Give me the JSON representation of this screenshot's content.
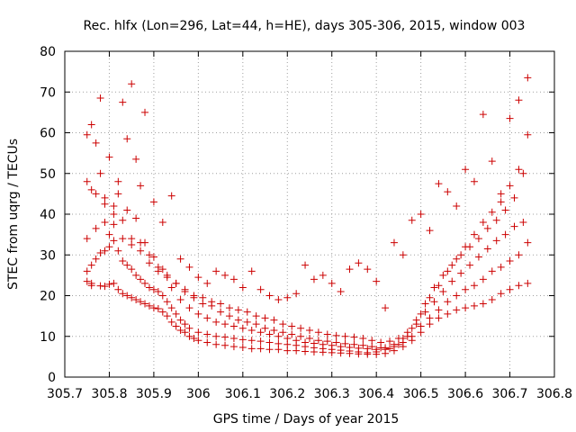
{
  "chart_data": {
    "type": "scatter",
    "title": "Rec. hlfx (Lon=296, Lat=44, h=HE), days 305-306, 2015, window 003",
    "xlabel": "GPS time / Days of year 2015",
    "ylabel": "STEC from uqrg / TECUs",
    "xlim": [
      305.7,
      306.8
    ],
    "ylim": [
      0,
      80
    ],
    "xticks": [
      "305.7",
      "305.8",
      "305.9",
      "306",
      "306.1",
      "306.2",
      "306.3",
      "306.4",
      "306.5",
      "306.6",
      "306.7",
      "306.8"
    ],
    "yticks": [
      "0",
      "10",
      "20",
      "30",
      "40",
      "50",
      "60",
      "70",
      "80"
    ],
    "grid": true,
    "marker": "plus",
    "marker_color": "#cc0000",
    "series": [
      {
        "x": [
          305.75,
          305.76,
          305.76,
          305.78,
          305.79,
          305.8,
          305.81,
          305.82,
          305.83,
          305.84,
          305.85,
          305.86,
          305.87,
          305.88,
          305.89,
          305.9,
          305.91,
          305.92,
          305.93,
          305.94,
          305.95,
          305.96,
          305.97,
          305.98,
          305.99,
          306.0,
          306.02,
          306.04,
          306.06,
          306.08,
          306.1,
          306.12,
          306.14,
          306.16,
          306.18,
          306.2,
          306.22,
          306.24,
          306.26,
          306.28,
          306.3,
          306.32,
          306.34,
          306.36,
          306.38,
          306.4,
          306.42,
          306.44,
          306.46,
          306.48,
          306.5,
          306.52,
          306.54,
          306.56,
          306.58,
          306.6,
          306.62,
          306.64,
          306.66,
          306.68,
          306.7,
          306.72,
          306.74
        ],
        "y": [
          23.5,
          23.0,
          22.5,
          22.4,
          22.3,
          22.8,
          23.0,
          21.5,
          20.5,
          20.0,
          19.5,
          19.0,
          18.5,
          18.0,
          17.5,
          17.0,
          16.8,
          16.0,
          15.0,
          13.5,
          12.5,
          11.5,
          11.0,
          10.0,
          9.5,
          9.0,
          8.5,
          8.0,
          7.8,
          7.5,
          7.3,
          7.0,
          7.0,
          6.8,
          6.8,
          6.5,
          6.5,
          6.3,
          6.2,
          6.1,
          6.0,
          5.9,
          5.8,
          5.7,
          5.6,
          5.6,
          5.8,
          6.5,
          7.5,
          9.0,
          11.0,
          13.0,
          14.5,
          15.5,
          16.5,
          17.0,
          17.5,
          18.0,
          19.0,
          20.5,
          21.5,
          22.5,
          23.0
        ]
      },
      {
        "x": [
          305.75,
          305.76,
          305.77,
          305.78,
          305.79,
          305.8,
          305.81,
          305.82,
          305.83,
          305.84,
          305.85,
          305.86,
          305.87,
          305.88,
          305.89,
          305.9,
          305.91,
          305.92,
          305.93,
          305.94,
          305.95,
          305.96,
          305.97,
          305.98,
          306.0,
          306.02,
          306.04,
          306.06,
          306.08,
          306.1,
          306.12,
          306.14,
          306.16,
          306.18,
          306.2,
          306.22,
          306.24,
          306.26,
          306.28,
          306.3,
          306.32,
          306.34,
          306.36,
          306.38,
          306.4,
          306.42,
          306.44,
          306.46,
          306.48,
          306.5,
          306.52,
          306.54,
          306.56,
          306.58,
          306.6,
          306.62,
          306.64,
          306.66,
          306.68,
          306.7,
          306.72,
          306.74
        ],
        "y": [
          26.0,
          27.5,
          29.0,
          30.5,
          31.0,
          32.0,
          33.5,
          31.0,
          28.5,
          27.5,
          26.5,
          25.0,
          24.0,
          23.0,
          22.0,
          21.5,
          21.0,
          20.0,
          18.5,
          17.0,
          15.5,
          14.0,
          13.0,
          12.0,
          11.0,
          10.5,
          10.0,
          9.8,
          9.5,
          9.2,
          9.0,
          8.8,
          8.5,
          8.2,
          8.0,
          7.8,
          7.5,
          7.2,
          7.0,
          6.8,
          6.6,
          6.4,
          6.2,
          6.0,
          6.2,
          6.8,
          7.5,
          8.5,
          10.0,
          12.5,
          14.5,
          16.5,
          18.5,
          20.0,
          21.5,
          22.5,
          24.0,
          26.0,
          27.0,
          28.5,
          30.0,
          33.0
        ]
      },
      {
        "x": [
          305.75,
          305.77,
          305.79,
          305.81,
          305.83,
          305.85,
          305.87,
          305.89,
          305.91,
          305.93,
          305.95,
          305.97,
          305.99,
          306.01,
          306.03,
          306.05,
          306.07,
          306.09,
          306.11,
          306.13,
          306.15,
          306.17,
          306.19,
          306.21,
          306.23,
          306.25,
          306.27,
          306.29,
          306.31,
          306.33,
          306.35,
          306.37,
          306.39,
          306.41,
          306.43,
          306.45,
          306.47,
          306.49,
          306.51,
          306.53,
          306.55,
          306.57,
          306.59,
          306.61,
          306.63,
          306.65,
          306.67,
          306.69,
          306.71,
          306.73
        ],
        "y": [
          34.0,
          36.5,
          38.0,
          37.5,
          34.0,
          32.5,
          31.0,
          28.0,
          26.0,
          24.5,
          23.0,
          21.5,
          20.0,
          19.5,
          18.5,
          18.0,
          17.0,
          16.5,
          16.0,
          15.0,
          14.5,
          14.0,
          13.0,
          12.5,
          12.0,
          11.5,
          11.0,
          10.5,
          10.2,
          10.0,
          9.8,
          9.5,
          9.0,
          8.5,
          8.8,
          9.5,
          11.0,
          13.0,
          16.0,
          18.5,
          21.0,
          23.5,
          25.5,
          27.5,
          29.5,
          31.5,
          33.5,
          35.0,
          37.0,
          38.0
        ]
      },
      {
        "x": [
          305.75,
          305.77,
          305.79,
          305.81,
          305.83,
          305.85,
          305.87,
          305.89,
          305.91,
          305.93,
          305.95,
          305.97,
          305.99,
          306.01,
          306.03,
          306.05,
          306.07,
          306.09,
          306.11,
          306.13,
          306.15,
          306.17,
          306.19,
          306.21,
          306.23,
          306.25,
          306.27,
          306.29,
          306.31,
          306.33,
          306.35,
          306.37,
          306.39,
          306.41,
          306.43,
          306.45,
          306.47,
          306.49,
          306.51,
          306.53,
          306.55,
          306.57,
          306.59,
          306.61,
          306.63,
          306.65,
          306.67,
          306.69,
          306.71,
          306.73
        ],
        "y": [
          48.0,
          45.0,
          42.5,
          40.0,
          38.5,
          34.0,
          33.0,
          30.0,
          27.0,
          25.0,
          23.0,
          21.0,
          19.5,
          18.0,
          17.5,
          16.0,
          15.0,
          14.0,
          13.5,
          13.0,
          12.0,
          11.5,
          11.0,
          10.5,
          10.0,
          9.5,
          9.0,
          8.8,
          8.5,
          8.2,
          8.0,
          7.8,
          7.5,
          7.2,
          7.0,
          8.0,
          10.0,
          14.0,
          18.0,
          22.0,
          25.0,
          27.5,
          30.0,
          32.0,
          34.0,
          36.5,
          38.5,
          41.0,
          44.0,
          50.0
        ]
      },
      {
        "x": [
          305.75,
          305.76,
          305.77,
          305.78,
          305.79,
          305.8,
          305.81,
          305.82,
          305.83,
          305.84,
          305.85,
          305.86,
          305.87,
          305.88,
          305.9,
          305.92,
          305.94,
          305.96,
          305.98,
          306.0,
          306.02,
          306.04,
          306.06,
          306.08,
          306.1,
          306.12,
          306.14,
          306.16,
          306.18,
          306.2,
          306.22,
          306.24,
          306.26,
          306.28,
          306.3,
          306.32,
          306.34,
          306.36,
          306.38,
          306.4,
          306.42,
          306.44,
          306.46,
          306.48,
          306.5,
          306.52,
          306.54,
          306.56,
          306.58,
          306.6,
          306.62,
          306.64,
          306.66,
          306.68,
          306.7,
          306.72,
          306.74
        ],
        "y": [
          59.5,
          62.0,
          57.5,
          68.5,
          44.0,
          54.0,
          42.0,
          48.0,
          67.5,
          58.5,
          72.0,
          53.5,
          47.0,
          65.0,
          43.0,
          38.0,
          44.5,
          29.0,
          27.0,
          24.5,
          23.0,
          26.0,
          25.0,
          24.0,
          22.0,
          26.0,
          21.5,
          20.0,
          19.0,
          19.5,
          20.5,
          27.5,
          24.0,
          25.0,
          23.0,
          21.0,
          26.5,
          28.0,
          26.5,
          23.5,
          17.0,
          33.0,
          30.0,
          38.5,
          40.0,
          36.0,
          47.5,
          45.5,
          42.0,
          51.0,
          48.0,
          64.5,
          53.0,
          45.0,
          63.5,
          68.0,
          73.5
        ]
      },
      {
        "x": [
          305.76,
          305.78,
          305.8,
          305.82,
          305.84,
          305.86,
          305.88,
          305.9,
          305.92,
          305.94,
          305.96,
          305.98,
          306.0,
          306.02,
          306.04,
          306.06,
          306.08,
          306.1,
          306.12,
          306.14,
          306.16,
          306.18,
          306.2,
          306.22,
          306.24,
          306.26,
          306.28,
          306.3,
          306.32,
          306.34,
          306.36,
          306.38,
          306.4,
          306.42,
          306.44,
          306.46,
          306.48,
          306.5,
          306.52,
          306.54,
          306.56,
          306.58,
          306.6,
          306.62,
          306.64,
          306.66,
          306.68,
          306.7,
          306.72,
          306.74
        ],
        "y": [
          46.0,
          50.0,
          35.0,
          45.0,
          41.0,
          39.0,
          33.0,
          29.5,
          26.5,
          22.0,
          19.0,
          17.0,
          15.5,
          14.5,
          13.5,
          13.0,
          12.5,
          12.0,
          11.5,
          11.0,
          10.5,
          10.0,
          9.5,
          9.0,
          8.5,
          8.3,
          8.0,
          7.8,
          7.5,
          7.3,
          7.1,
          7.0,
          6.8,
          7.2,
          8.0,
          9.5,
          12.0,
          15.5,
          19.5,
          22.5,
          26.0,
          29.0,
          32.0,
          35.0,
          38.0,
          40.5,
          43.0,
          47.0,
          51.0,
          59.5
        ]
      }
    ]
  }
}
